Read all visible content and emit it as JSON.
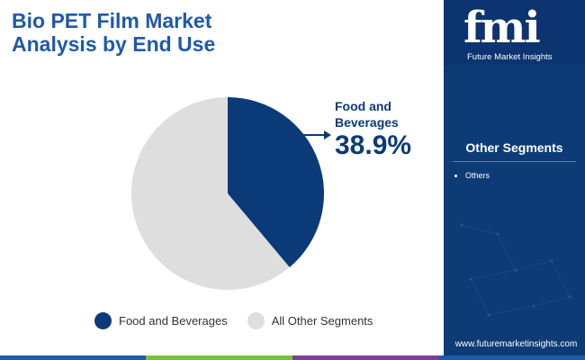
{
  "title": "Bio PET Film Market Analysis by End Use",
  "chart_data": {
    "type": "pie",
    "title": "Bio PET Film Market Analysis by End Use",
    "slices": [
      {
        "label": "Food and Beverages",
        "value": 38.9,
        "color": "#0b3a78"
      },
      {
        "label": "All Other Segments",
        "value": 61.1,
        "color": "#dedede"
      }
    ],
    "callout": {
      "label": "Food and Beverages",
      "value_text": "38.9%"
    },
    "legend": [
      "Food and Beverages",
      "All Other Segments"
    ],
    "legend_placement": "bottom"
  },
  "brand": {
    "logo_text": "fmi",
    "logo_subtitle": "Future Market Insights",
    "website": "www.futuremarketinsights.com"
  },
  "side_panel": {
    "heading": "Other Segments",
    "items": [
      "Others"
    ]
  },
  "colors": {
    "title": "#1f5aa8",
    "primary": "#0b3a78",
    "secondary": "#dedede",
    "panel": "#0d3b75",
    "bar": [
      "#1f5aa8",
      "#7cbf3f",
      "#7b3f98",
      "#1f5aa8"
    ]
  }
}
